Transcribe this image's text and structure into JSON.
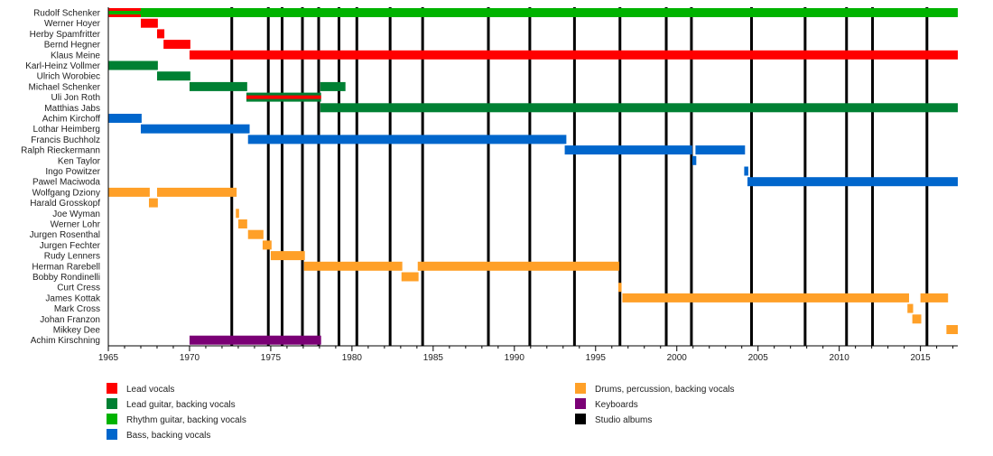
{
  "chart_data": {
    "type": "timeline",
    "xlim": [
      1965,
      2017.3
    ],
    "x_ticks": [
      1965,
      1970,
      1975,
      1980,
      1985,
      1990,
      1995,
      2000,
      2005,
      2010,
      2015
    ],
    "tick_labels": [
      "1965",
      "1970",
      "1975",
      "1980",
      "1985",
      "1990",
      "1995",
      "2000",
      "2005",
      "2010",
      "2015"
    ],
    "colors": {
      "lead_vocals": "#ff0000",
      "lead_guitar": "#008033",
      "rhythm_guitar": "#00b300",
      "bass": "#0066cc",
      "drums": "#ffa028",
      "keyboards": "#7a0075",
      "albums": "#000000"
    },
    "legend": [
      {
        "role": "lead_vocals",
        "label": "Lead vocals"
      },
      {
        "role": "lead_guitar",
        "label": "Lead guitar, backing vocals"
      },
      {
        "role": "rhythm_guitar",
        "label": "Rhythm guitar, backing vocals"
      },
      {
        "role": "bass",
        "label": "Bass, backing vocals"
      },
      {
        "role": "drums",
        "label": "Drums, percussion, backing vocals"
      },
      {
        "role": "keyboards",
        "label": "Keyboards"
      },
      {
        "role": "albums",
        "label": "Studio albums"
      }
    ],
    "legend_placement": "bottom",
    "studio_albums": [
      1972.6,
      1974.85,
      1975.7,
      1976.95,
      1977.95,
      1979.2,
      1980.3,
      1982.35,
      1984.35,
      1988.4,
      1990.95,
      1993.7,
      1996.5,
      1999.35,
      2000.9,
      2004.6,
      2007.9,
      2010.45,
      2012.05,
      2015.4
    ],
    "members": [
      {
        "name": "Rudolf Schenker",
        "spans": [
          {
            "start": 1965,
            "end": 2017.3,
            "role": "rhythm_guitar"
          },
          {
            "start": 1965,
            "end": 1967,
            "role": "lead_vocals",
            "inner": "rhythm_guitar"
          }
        ]
      },
      {
        "name": "Werner Hoyer",
        "spans": [
          {
            "start": 1967,
            "end": 1968.05,
            "role": "lead_vocals"
          }
        ]
      },
      {
        "name": "Herby Spamfritter",
        "spans": [
          {
            "start": 1968,
            "end": 1968.45,
            "role": "lead_vocals"
          }
        ]
      },
      {
        "name": "Bernd Hegner",
        "spans": [
          {
            "start": 1968.4,
            "end": 1970.05,
            "role": "lead_vocals"
          }
        ]
      },
      {
        "name": "Klaus Meine",
        "spans": [
          {
            "start": 1970,
            "end": 2017.3,
            "role": "lead_vocals"
          }
        ]
      },
      {
        "name": "Karl-Heinz Vollmer",
        "spans": [
          {
            "start": 1965,
            "end": 1968.05,
            "role": "lead_guitar"
          }
        ]
      },
      {
        "name": "Ulrich Worobiec",
        "spans": [
          {
            "start": 1968,
            "end": 1970.05,
            "role": "lead_guitar"
          }
        ]
      },
      {
        "name": "Michael Schenker",
        "spans": [
          {
            "start": 1970,
            "end": 1973.55,
            "role": "lead_guitar"
          },
          {
            "start": 1978.05,
            "end": 1979.6,
            "role": "lead_guitar"
          }
        ]
      },
      {
        "name": "Uli Jon Roth",
        "spans": [
          {
            "start": 1973.5,
            "end": 1978.1,
            "role": "lead_guitar",
            "inner": "lead_vocals"
          }
        ]
      },
      {
        "name": "Matthias Jabs",
        "spans": [
          {
            "start": 1978.05,
            "end": 2017.3,
            "role": "lead_guitar"
          }
        ]
      },
      {
        "name": "Achim Kirchoff",
        "spans": [
          {
            "start": 1965,
            "end": 1967.05,
            "role": "bass"
          }
        ]
      },
      {
        "name": "Lothar Heimberg",
        "spans": [
          {
            "start": 1967,
            "end": 1973.7,
            "role": "bass"
          }
        ]
      },
      {
        "name": "Francis Buchholz",
        "spans": [
          {
            "start": 1973.6,
            "end": 1993.2,
            "role": "bass"
          }
        ]
      },
      {
        "name": "Ralph Rieckermann",
        "spans": [
          {
            "start": 1993.1,
            "end": 2000.95,
            "role": "bass"
          },
          {
            "start": 2001.15,
            "end": 2004.2,
            "role": "bass"
          }
        ]
      },
      {
        "name": "Ken Taylor",
        "spans": [
          {
            "start": 2000.95,
            "end": 2001.2,
            "role": "bass"
          }
        ]
      },
      {
        "name": "Ingo Powitzer",
        "spans": [
          {
            "start": 2004.15,
            "end": 2004.4,
            "role": "bass"
          }
        ]
      },
      {
        "name": "Pawel Maciwoda",
        "spans": [
          {
            "start": 2004.35,
            "end": 2017.3,
            "role": "bass"
          }
        ]
      },
      {
        "name": "Wolfgang Dziony",
        "spans": [
          {
            "start": 1965,
            "end": 1967.55,
            "role": "drums"
          },
          {
            "start": 1968,
            "end": 1972.9,
            "role": "drums"
          }
        ]
      },
      {
        "name": "Harald Grosskopf",
        "spans": [
          {
            "start": 1967.5,
            "end": 1968.05,
            "role": "drums"
          }
        ]
      },
      {
        "name": "Joe Wyman",
        "spans": [
          {
            "start": 1972.85,
            "end": 1973.05,
            "role": "drums"
          }
        ]
      },
      {
        "name": "Werner Lohr",
        "spans": [
          {
            "start": 1973,
            "end": 1973.55,
            "role": "drums"
          }
        ]
      },
      {
        "name": "Jurgen Rosenthal",
        "spans": [
          {
            "start": 1973.6,
            "end": 1974.55,
            "role": "drums"
          }
        ]
      },
      {
        "name": "Jurgen Fechter",
        "spans": [
          {
            "start": 1974.5,
            "end": 1975.05,
            "role": "drums"
          }
        ]
      },
      {
        "name": "Rudy Lenners",
        "spans": [
          {
            "start": 1975,
            "end": 1977.1,
            "role": "drums"
          }
        ]
      },
      {
        "name": "Herman Rarebell",
        "spans": [
          {
            "start": 1977.05,
            "end": 1983.1,
            "role": "drums"
          },
          {
            "start": 1984.05,
            "end": 1996.45,
            "role": "drums"
          }
        ]
      },
      {
        "name": "Bobby Rondinelli",
        "spans": [
          {
            "start": 1983.05,
            "end": 1984.1,
            "role": "drums"
          }
        ]
      },
      {
        "name": "Curt Cress",
        "spans": [
          {
            "start": 1996.4,
            "end": 1996.6,
            "role": "drums"
          }
        ]
      },
      {
        "name": "James Kottak",
        "spans": [
          {
            "start": 1996.65,
            "end": 2014.3,
            "role": "drums"
          },
          {
            "start": 2015,
            "end": 2016.7,
            "role": "drums"
          }
        ]
      },
      {
        "name": "Mark Cross",
        "spans": [
          {
            "start": 2014.2,
            "end": 2014.55,
            "role": "drums"
          }
        ]
      },
      {
        "name": "Johan Franzon",
        "spans": [
          {
            "start": 2014.5,
            "end": 2015.05,
            "role": "drums"
          }
        ]
      },
      {
        "name": "Mikkey Dee",
        "spans": [
          {
            "start": 2016.6,
            "end": 2017.3,
            "role": "drums"
          }
        ]
      },
      {
        "name": "Achim Kirschning",
        "spans": [
          {
            "start": 1970,
            "end": 1978.1,
            "role": "keyboards"
          }
        ]
      }
    ]
  }
}
